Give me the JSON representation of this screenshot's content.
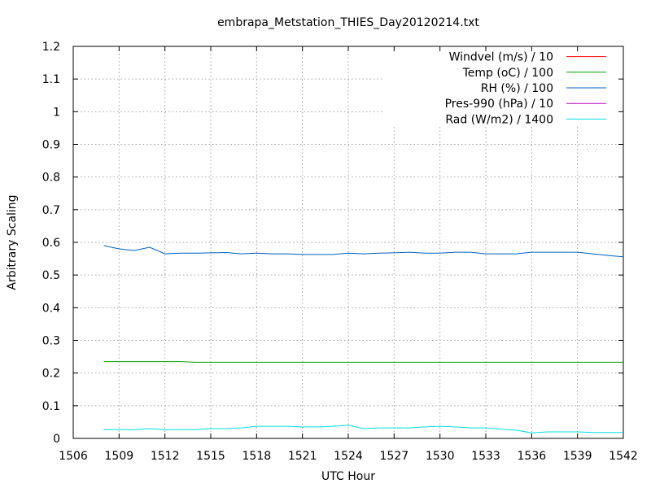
{
  "chart_data": {
    "type": "line",
    "title": "embrapa_Metstation_THIES_Day20120214.txt",
    "xlabel": "UTC Hour",
    "ylabel": "Arbitrary Scaling",
    "xlim": [
      1506,
      1542
    ],
    "ylim": [
      0,
      1.2
    ],
    "xticks": [
      1506,
      1509,
      1512,
      1515,
      1518,
      1521,
      1524,
      1527,
      1530,
      1533,
      1536,
      1539,
      1542
    ],
    "yticks": [
      0,
      0.1,
      0.2,
      0.3,
      0.4,
      0.5,
      0.6,
      0.7,
      0.8,
      0.9,
      1,
      1.1,
      1.2
    ],
    "xtick_labels": [
      "1506",
      "1509",
      "1512",
      "1515",
      "1518",
      "1521",
      "1524",
      "1527",
      "1530",
      "1533",
      "1536",
      "1539",
      "1542"
    ],
    "ytick_labels": [
      "0",
      "0.1",
      "0.2",
      "0.3",
      "0.4",
      "0.5",
      "0.6",
      "0.7",
      "0.8",
      "0.9",
      "1",
      "1.1",
      "1.2"
    ],
    "grid": true,
    "legend_position": "top-right",
    "series": [
      {
        "name": "Windvel (m/s) / 10",
        "color": "#ff0000",
        "points": []
      },
      {
        "name": "Temp (oC) / 100",
        "color": "#00a000",
        "points": [
          [
            1508,
            0.235
          ],
          [
            1510,
            0.235
          ],
          [
            1513,
            0.235
          ],
          [
            1514,
            0.233
          ],
          [
            1520,
            0.233
          ],
          [
            1525,
            0.233
          ],
          [
            1530,
            0.233
          ],
          [
            1535,
            0.233
          ],
          [
            1542,
            0.233
          ]
        ]
      },
      {
        "name": "RH (%) / 100",
        "color": "#0060c0",
        "points": [
          [
            1508,
            0.59
          ],
          [
            1509,
            0.58
          ],
          [
            1510,
            0.575
          ],
          [
            1511,
            0.585
          ],
          [
            1512,
            0.565
          ],
          [
            1513,
            0.567
          ],
          [
            1514,
            0.567
          ],
          [
            1515,
            0.568
          ],
          [
            1516,
            0.569
          ],
          [
            1517,
            0.565
          ],
          [
            1518,
            0.567
          ],
          [
            1519,
            0.565
          ],
          [
            1520,
            0.565
          ],
          [
            1521,
            0.563
          ],
          [
            1522,
            0.563
          ],
          [
            1523,
            0.563
          ],
          [
            1524,
            0.567
          ],
          [
            1525,
            0.565
          ],
          [
            1526,
            0.567
          ],
          [
            1527,
            0.568
          ],
          [
            1528,
            0.57
          ],
          [
            1529,
            0.567
          ],
          [
            1530,
            0.567
          ],
          [
            1531,
            0.57
          ],
          [
            1532,
            0.57
          ],
          [
            1533,
            0.565
          ],
          [
            1534,
            0.565
          ],
          [
            1535,
            0.565
          ],
          [
            1536,
            0.57
          ],
          [
            1537,
            0.57
          ],
          [
            1538,
            0.57
          ],
          [
            1539,
            0.57
          ],
          [
            1540,
            0.565
          ],
          [
            1541,
            0.56
          ],
          [
            1542,
            0.556
          ]
        ]
      },
      {
        "name": "Pres-990 (hPa) / 10",
        "color": "#c000c0",
        "points": []
      },
      {
        "name": "Rad (W/m2) / 1400",
        "color": "#00e0e0",
        "points": [
          [
            1508,
            0.027
          ],
          [
            1509,
            0.027
          ],
          [
            1510,
            0.027
          ],
          [
            1511,
            0.03
          ],
          [
            1512,
            0.027
          ],
          [
            1513,
            0.027
          ],
          [
            1514,
            0.027
          ],
          [
            1515,
            0.03
          ],
          [
            1516,
            0.03
          ],
          [
            1517,
            0.032
          ],
          [
            1518,
            0.037
          ],
          [
            1519,
            0.037
          ],
          [
            1520,
            0.037
          ],
          [
            1521,
            0.035
          ],
          [
            1522,
            0.035
          ],
          [
            1523,
            0.037
          ],
          [
            1524,
            0.04
          ],
          [
            1525,
            0.03
          ],
          [
            1526,
            0.032
          ],
          [
            1527,
            0.032
          ],
          [
            1528,
            0.032
          ],
          [
            1529,
            0.035
          ],
          [
            1530,
            0.037
          ],
          [
            1531,
            0.035
          ],
          [
            1532,
            0.032
          ],
          [
            1533,
            0.032
          ],
          [
            1534,
            0.028
          ],
          [
            1535,
            0.025
          ],
          [
            1536,
            0.017
          ],
          [
            1537,
            0.02
          ],
          [
            1538,
            0.02
          ],
          [
            1539,
            0.02
          ],
          [
            1540,
            0.018
          ],
          [
            1541,
            0.018
          ],
          [
            1542,
            0.018
          ]
        ]
      }
    ]
  }
}
